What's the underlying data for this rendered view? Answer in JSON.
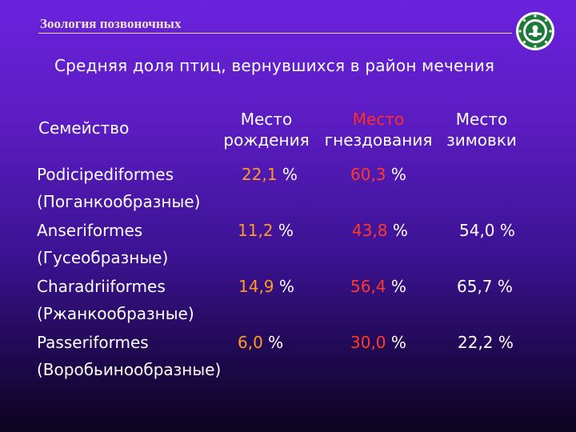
{
  "header": {
    "title": "Зоология позвоночных",
    "logo_icon": "university-emblem-icon"
  },
  "subtitle": "Средняя доля птиц, вернувшихся в район мечения",
  "table": {
    "family_header": "Семейство",
    "columns": [
      {
        "line1": "Место",
        "line2": "рождения"
      },
      {
        "line1": "Место",
        "line2": "гнездования"
      },
      {
        "line1": "Место",
        "line2": "зимовки"
      }
    ],
    "rows": [
      {
        "name": "Podicipediformes",
        "name_ru": "(Поганкообразные)",
        "birth": "22,1",
        "nesting": "60,3",
        "wintering": ""
      },
      {
        "name": "Anseriformes",
        "name_ru": "(Гусеобразные)",
        "birth": "11,2",
        "nesting": "43,8",
        "wintering": "54,0 %"
      },
      {
        "name": "Charadriiformes",
        "name_ru": "(Ржанкообразные)",
        "birth": "14,9",
        "nesting": "56,4",
        "wintering": "65,7 %"
      },
      {
        "name": "Passeriformes",
        "name_ru": "(Воробьинообразные)",
        "birth": "6,0",
        "nesting": "30,0",
        "wintering": "22,2 %"
      }
    ],
    "unit": "%"
  },
  "colors": {
    "background": "#5a1cc0",
    "accent_orange": "#ff9a2a",
    "accent_red": "#ff3a2a",
    "header_rule": "#e6d6a8"
  }
}
